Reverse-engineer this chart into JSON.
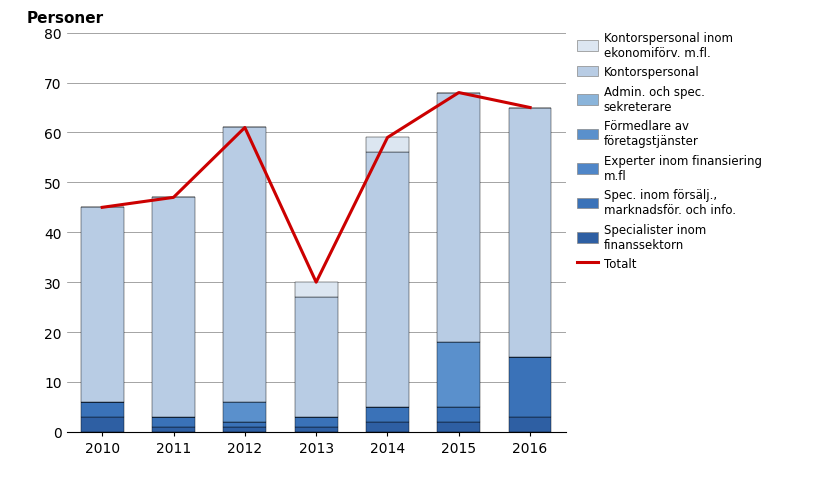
{
  "years": [
    2010,
    2011,
    2012,
    2013,
    2014,
    2015,
    2016
  ],
  "totals": [
    45,
    47,
    61,
    30,
    59,
    68,
    65
  ],
  "segments": {
    "Specialister inom\nfinanssektorn": [
      3,
      1,
      1,
      1,
      2,
      2,
      3
    ],
    "Spec. inom försälj.,\nmarknadsför. och info.": [
      3,
      2,
      1,
      2,
      3,
      3,
      12
    ],
    "Experter inom finansiering\nm.fl": [
      0,
      0,
      0,
      0,
      0,
      0,
      0
    ],
    "Förmedlare av\nföretagstjänster": [
      0,
      0,
      4,
      0,
      0,
      13,
      0
    ],
    "Admin. och spec.\nsekreterar e": [
      0,
      0,
      0,
      0,
      0,
      0,
      0
    ],
    "Kontorspersonal": [
      39,
      44,
      55,
      24,
      51,
      50,
      50
    ],
    "Kontorspersonal inom\nekonomiفörv. m.fl.": [
      0,
      0,
      0,
      3,
      3,
      0,
      0
    ]
  },
  "legend_labels": [
    "Kontorspersonal inom\nekonomiفörv. m.fl.",
    "Kontorspersonal",
    "Admin. och spec.\nsekreterare",
    "Förmedlare av\nföretagstjänster",
    "Experter inom finansiering\nm.fl",
    "Spec. inom försälj.,\nmarknadsför. och info.",
    "Specialister inom\nfinanssektorn"
  ],
  "colors": {
    "Specialister inom\nfinanssektorn": "#2E5FA3",
    "Spec. inom försälj.,\nmarknadsför. och info.": "#3A72B8",
    "Experter inom finansiering\nm.fl": "#4F86C8",
    "Förmedlare av\nföretagstjänster": "#5A90CC",
    "Admin. och spec.\nsekreterar e": "#8AB4DA",
    "Kontorspersonal": "#B8CCE4",
    "Kontorspersonal inom\nekonomiفörv. m.fl.": "#DCE6F1"
  },
  "line_color": "#CC0000",
  "ylabel": "Personer",
  "ylim": [
    0,
    80
  ],
  "yticks": [
    0,
    10,
    20,
    30,
    40,
    50,
    60,
    70,
    80
  ],
  "bar_width": 0.6
}
